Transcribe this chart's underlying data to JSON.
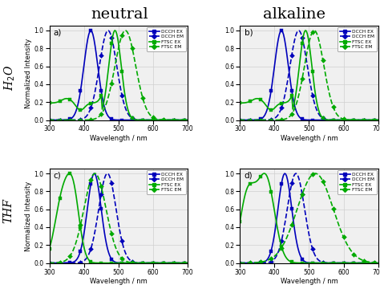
{
  "title_neutral": "neutral",
  "title_alkaline": "alkaline",
  "label_H2O": "H$_2$O",
  "label_THF": "THF",
  "xlabel": "Wavelength / nm",
  "ylabel": "Normalized Intensity",
  "xlim": [
    300,
    700
  ],
  "ylim": [
    0,
    1.05
  ],
  "panel_labels": [
    "a)",
    "b)",
    "c)",
    "d)"
  ],
  "legend_entries": [
    "DCCH EX",
    "DCCH EM",
    "FTSC EX",
    "FTSC EM"
  ],
  "blue_color": "#0000BB",
  "green_color": "#00AA00",
  "bg_color": "#f0f0f0",
  "grid_color": "#d0d0d0"
}
